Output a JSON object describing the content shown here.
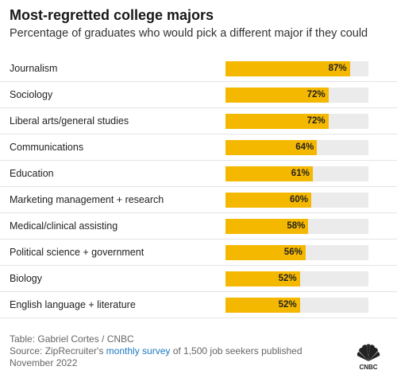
{
  "chart_data": {
    "type": "bar",
    "orientation": "horizontal",
    "title": "Most-regretted college majors",
    "subtitle": "Percentage of graduates who would pick a different major if they could",
    "categories": [
      "Journalism",
      "Sociology",
      "Liberal arts/general studies",
      "Communications",
      "Education",
      "Marketing management + research",
      "Medical/clinical assisting",
      "Political science + government",
      "Biology",
      "English language + literature"
    ],
    "values": [
      87,
      72,
      72,
      64,
      61,
      60,
      58,
      56,
      52,
      52
    ],
    "value_labels": [
      "87%",
      "72%",
      "72%",
      "64%",
      "61%",
      "60%",
      "58%",
      "56%",
      "52%",
      "52%"
    ],
    "xlim": [
      0,
      100
    ],
    "bar_color": "#f5b800",
    "track_color": "#ebebeb",
    "grid": false
  },
  "footer": {
    "credit": "Table: Gabriel Cortes / CNBC",
    "source_prefix": "Source: ZipRecruiter's ",
    "source_link": "monthly survey",
    "source_suffix": " of 1,500 job seekers published November 2022"
  },
  "logo": {
    "name": "cnbc-peacock-logo",
    "text": "CNBC"
  }
}
